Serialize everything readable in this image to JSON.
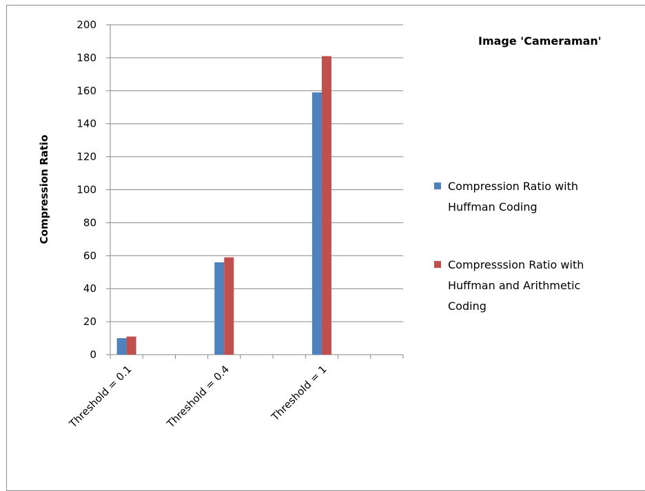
{
  "chart_data": {
    "type": "bar",
    "title": "Image 'Cameraman'",
    "ylabel": "Compression Ratio",
    "xlabel": "",
    "categories": [
      "Threshold = 0.1",
      "Threshold = 0.4",
      "Threshold = 1"
    ],
    "series": [
      {
        "name": "Compression Ratio with Huffman Coding",
        "legend_lines": [
          "Compression Ratio with",
          "Huffman Coding"
        ],
        "color": "#4f81bd",
        "values": [
          10,
          56,
          159
        ]
      },
      {
        "name": "Compresssion Ratio with Huffman and Arithmetic Coding",
        "legend_lines": [
          "Compresssion Ratio with",
          "Huffman and Arithmetic",
          "Coding"
        ],
        "color": "#c0504d",
        "values": [
          11,
          59,
          181
        ]
      }
    ],
    "ylim": [
      0,
      200
    ],
    "yticks": [
      0,
      20,
      40,
      60,
      80,
      100,
      120,
      140,
      160,
      180,
      200
    ],
    "grid": true,
    "legend_position": "right"
  }
}
